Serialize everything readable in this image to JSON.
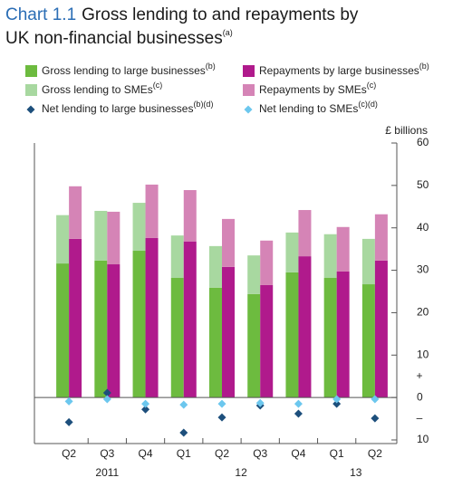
{
  "chart_data": {
    "type": "bar",
    "chart_label": "Chart 1.1",
    "title": [
      "Gross lending to and repayments by",
      "UK non-financial businesses"
    ],
    "title_note": "(a)",
    "y_label": "£ billions",
    "sign_labels": [
      "+",
      "–"
    ],
    "categories": [
      "Q2",
      "Q3",
      "Q4",
      "Q1",
      "Q2",
      "Q3",
      "Q4",
      "Q1",
      "Q2"
    ],
    "years": [
      {
        "label": "2011",
        "first": 0,
        "last": 2
      },
      {
        "label": "12",
        "first": 3,
        "last": 6
      },
      {
        "label": "13",
        "first": 7,
        "last": 8
      }
    ],
    "ylim": [
      -10,
      60
    ],
    "yticks": [
      {
        "value": -10,
        "label": "10"
      },
      0,
      10,
      20,
      30,
      40,
      50,
      60
    ],
    "series": [
      {
        "name": "Gross lending to large businesses",
        "note": "(b)",
        "kind": "bar",
        "stack": "gross",
        "color": "#6dbb3f",
        "values": [
          31.6,
          32.3,
          34.6,
          28.2,
          25.9,
          24.4,
          29.5,
          28.2,
          26.7
        ]
      },
      {
        "name": "Gross lending to SMEs",
        "note": "(c)",
        "kind": "bar",
        "stack": "gross",
        "color": "#a8d8a0",
        "values": [
          11.4,
          11.7,
          11.3,
          10.0,
          9.8,
          9.1,
          9.4,
          10.3,
          10.7
        ]
      },
      {
        "name": "Net lending to large businesses",
        "note": "(b)(d)",
        "kind": "marker",
        "color": "#1d4f7c",
        "values": [
          -5.8,
          1.1,
          -2.8,
          -8.3,
          -4.7,
          -1.9,
          -3.8,
          -1.5,
          -4.9
        ]
      },
      {
        "name": "Repayments by large businesses",
        "note": "(b)",
        "kind": "bar",
        "stack": "repay",
        "color": "#b01a8c",
        "values": [
          37.4,
          31.4,
          37.6,
          36.8,
          30.8,
          26.5,
          33.3,
          29.7,
          32.3
        ]
      },
      {
        "name": "Repayments by SMEs",
        "note": "(c)",
        "kind": "bar",
        "stack": "repay",
        "color": "#d584b6",
        "values": [
          12.4,
          12.4,
          12.6,
          12.1,
          11.3,
          10.5,
          10.9,
          10.5,
          10.9
        ]
      },
      {
        "name": "Net lending to SMEs",
        "note": "(c)(d)",
        "kind": "marker",
        "color": "#6cc7ee",
        "values": [
          -0.9,
          -0.4,
          -1.5,
          -1.7,
          -1.5,
          -1.3,
          -1.5,
          -0.4,
          -0.4
        ]
      }
    ]
  }
}
